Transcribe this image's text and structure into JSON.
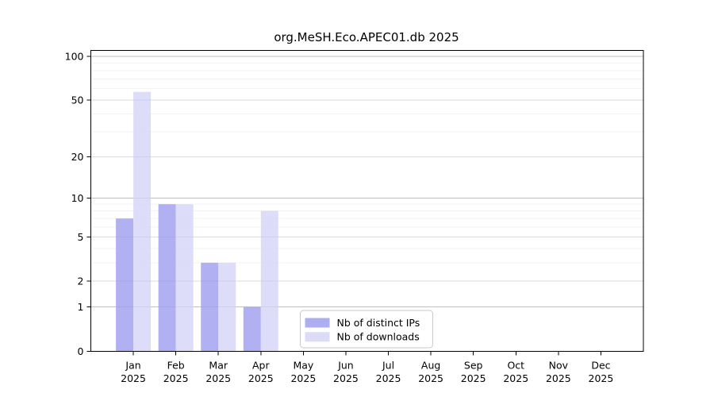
{
  "chart_data": {
    "type": "bar",
    "title": "org.MeSH.Eco.APEC01.db 2025",
    "categories": [
      "Jan",
      "Feb",
      "Mar",
      "Apr",
      "May",
      "Jun",
      "Jul",
      "Aug",
      "Sep",
      "Oct",
      "Nov",
      "Dec"
    ],
    "category_year": "2025",
    "series": [
      {
        "name": "Nb of distinct IPs",
        "color": "#a9a9f1",
        "values": [
          7,
          9,
          3,
          1,
          0,
          0,
          0,
          0,
          0,
          0,
          0,
          0
        ]
      },
      {
        "name": "Nb of downloads",
        "color": "#dadaf8",
        "values": [
          57,
          9,
          3,
          8,
          0,
          0,
          0,
          0,
          0,
          0,
          0,
          0
        ]
      }
    ],
    "xlabel": "",
    "ylabel": "",
    "yscale": "log1p",
    "yticks": [
      0,
      1,
      2,
      5,
      10,
      20,
      50,
      100
    ],
    "ylim": [
      0,
      110
    ],
    "grid": "horizontal, log minor gridlines",
    "legend_position": "lower center",
    "legend_entries": [
      "Nb of distinct IPs",
      "Nb of downloads"
    ]
  }
}
